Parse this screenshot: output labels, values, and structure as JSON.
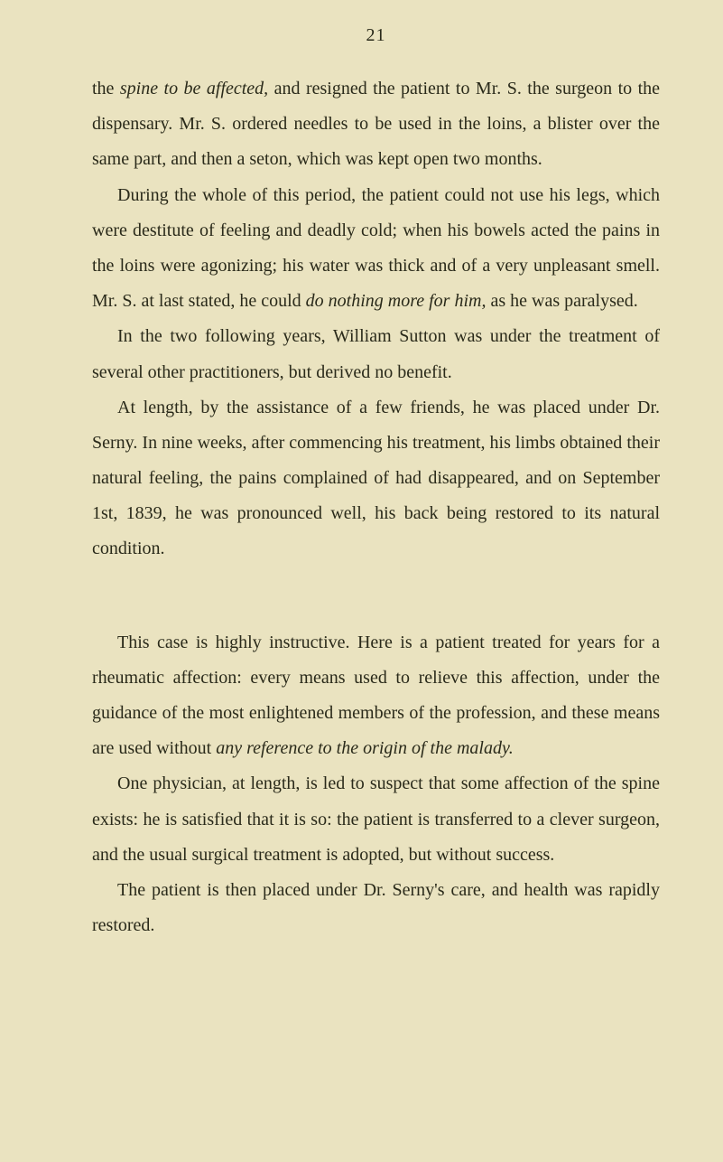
{
  "page_number": "21",
  "paragraphs": {
    "p1_a": "the ",
    "p1_i1": "spine to be affected,",
    "p1_b": " and resigned the patient to Mr. S. the surgeon to the dispensary. Mr. S. ordered needles to be used in the loins, a blister over the same part, and then a seton, which was kept open two months.",
    "p2_a": "During the whole of this period, the patient could not use his legs, which were destitute of feeling and deadly cold; when his bowels acted the pains in the loins were agonizing; his water was thick and of a very unpleasant smell. Mr. S. at last stated, he could ",
    "p2_i1": "do nothing more for him,",
    "p2_b": " as he was paralysed.",
    "p3": "In the two following years, William Sutton was under the treatment of several other practitioners, but derived no benefit.",
    "p4": "At length, by the assistance of a few friends, he was placed under Dr. Serny. In nine weeks, after commencing his treatment, his limbs obtained their natural feeling, the pains complained of had disappeared, and on September 1st, 1839, he was pronounced well, his back being restored to its natural condition.",
    "p5_a": "This case is highly instructive. Here is a patient treated for years for a rheumatic affection: every means used to relieve this affection, under the guidance of the most enlightened members of the profession, and these means are used without ",
    "p5_i1": "any reference to the origin of the malady.",
    "p6": "One physician, at length, is led to suspect that some affection of the spine exists: he is satisfied that it is so: the patient is transferred to a clever surgeon, and the usual surgical treatment is adopted, but without success.",
    "p7": "The patient is then placed under Dr. Serny's care, and health was rapidly restored."
  }
}
